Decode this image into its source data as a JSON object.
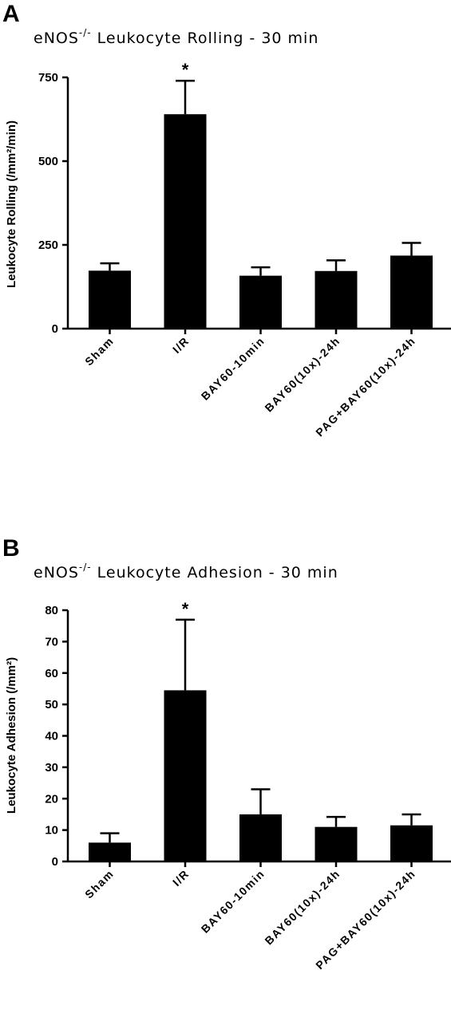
{
  "chart_data": [
    {
      "type": "bar",
      "panel": "A",
      "title_main": "eNOS",
      "title_sup": "-/-",
      "title_rest": " Leukocyte  Rolling - 30 min",
      "ylabel": "Leukocyte Rolling (/mm²/min)",
      "categories": [
        "Sham",
        "I/R",
        "BAY60-10min",
        "BAY60(10x)-24h",
        "PAG+BAY60(10x)-24h"
      ],
      "values": [
        173,
        640,
        158,
        172,
        218
      ],
      "errors": [
        22,
        100,
        25,
        32,
        38
      ],
      "annotations": [
        "",
        "*",
        "",
        "",
        ""
      ],
      "ylim": [
        0,
        750
      ],
      "yticks": [
        0,
        250,
        500,
        750
      ],
      "bar_color": "#000000"
    },
    {
      "type": "bar",
      "panel": "B",
      "title_main": "eNOS",
      "title_sup": "-/-",
      "title_rest": " Leukocyte Adhesion - 30 min",
      "ylabel": "Leukocyte Adhesion (/mm²)",
      "categories": [
        "Sham",
        "I/R",
        "BAY60-10min",
        "BAY60(10x)-24h",
        "PAG+BAY60(10x)-24h"
      ],
      "values": [
        6,
        54.5,
        15,
        11,
        11.5
      ],
      "errors": [
        3,
        22.5,
        8,
        3.2,
        3.5
      ],
      "annotations": [
        "",
        "*",
        "",
        "",
        ""
      ],
      "ylim": [
        0,
        80
      ],
      "yticks": [
        0,
        10,
        20,
        30,
        40,
        50,
        60,
        70,
        80
      ],
      "bar_color": "#000000"
    }
  ]
}
